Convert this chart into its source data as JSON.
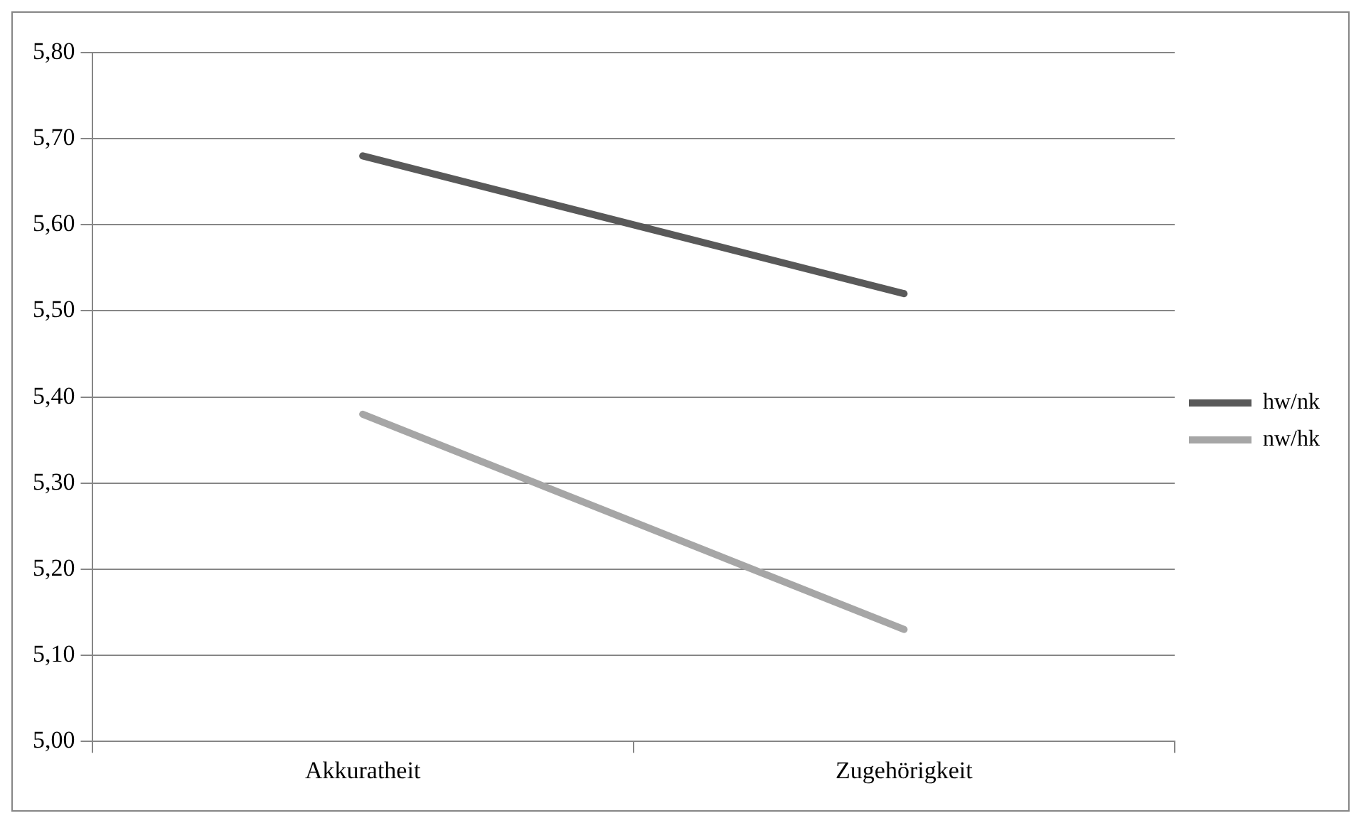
{
  "chart_data": {
    "type": "line",
    "categories": [
      "Akkuratheit",
      "Zugehörigkeit"
    ],
    "series": [
      {
        "name": "hw/nk",
        "color": "#595959",
        "values": [
          5.68,
          5.52
        ]
      },
      {
        "name": "nw/hk",
        "color": "#a6a6a6",
        "values": [
          5.38,
          5.13
        ]
      }
    ],
    "ylim": [
      5.0,
      5.8
    ],
    "yticks": [
      {
        "value": 5.0,
        "label": "5,00"
      },
      {
        "value": 5.1,
        "label": "5,10"
      },
      {
        "value": 5.2,
        "label": "5,20"
      },
      {
        "value": 5.3,
        "label": "5,30"
      },
      {
        "value": 5.4,
        "label": "5,40"
      },
      {
        "value": 5.5,
        "label": "5,50"
      },
      {
        "value": 5.6,
        "label": "5,60"
      },
      {
        "value": 5.7,
        "label": "5,70"
      },
      {
        "value": 5.8,
        "label": "5,80"
      }
    ],
    "grid": "y",
    "legend": "right",
    "marker": "none",
    "line_style": "solid"
  }
}
